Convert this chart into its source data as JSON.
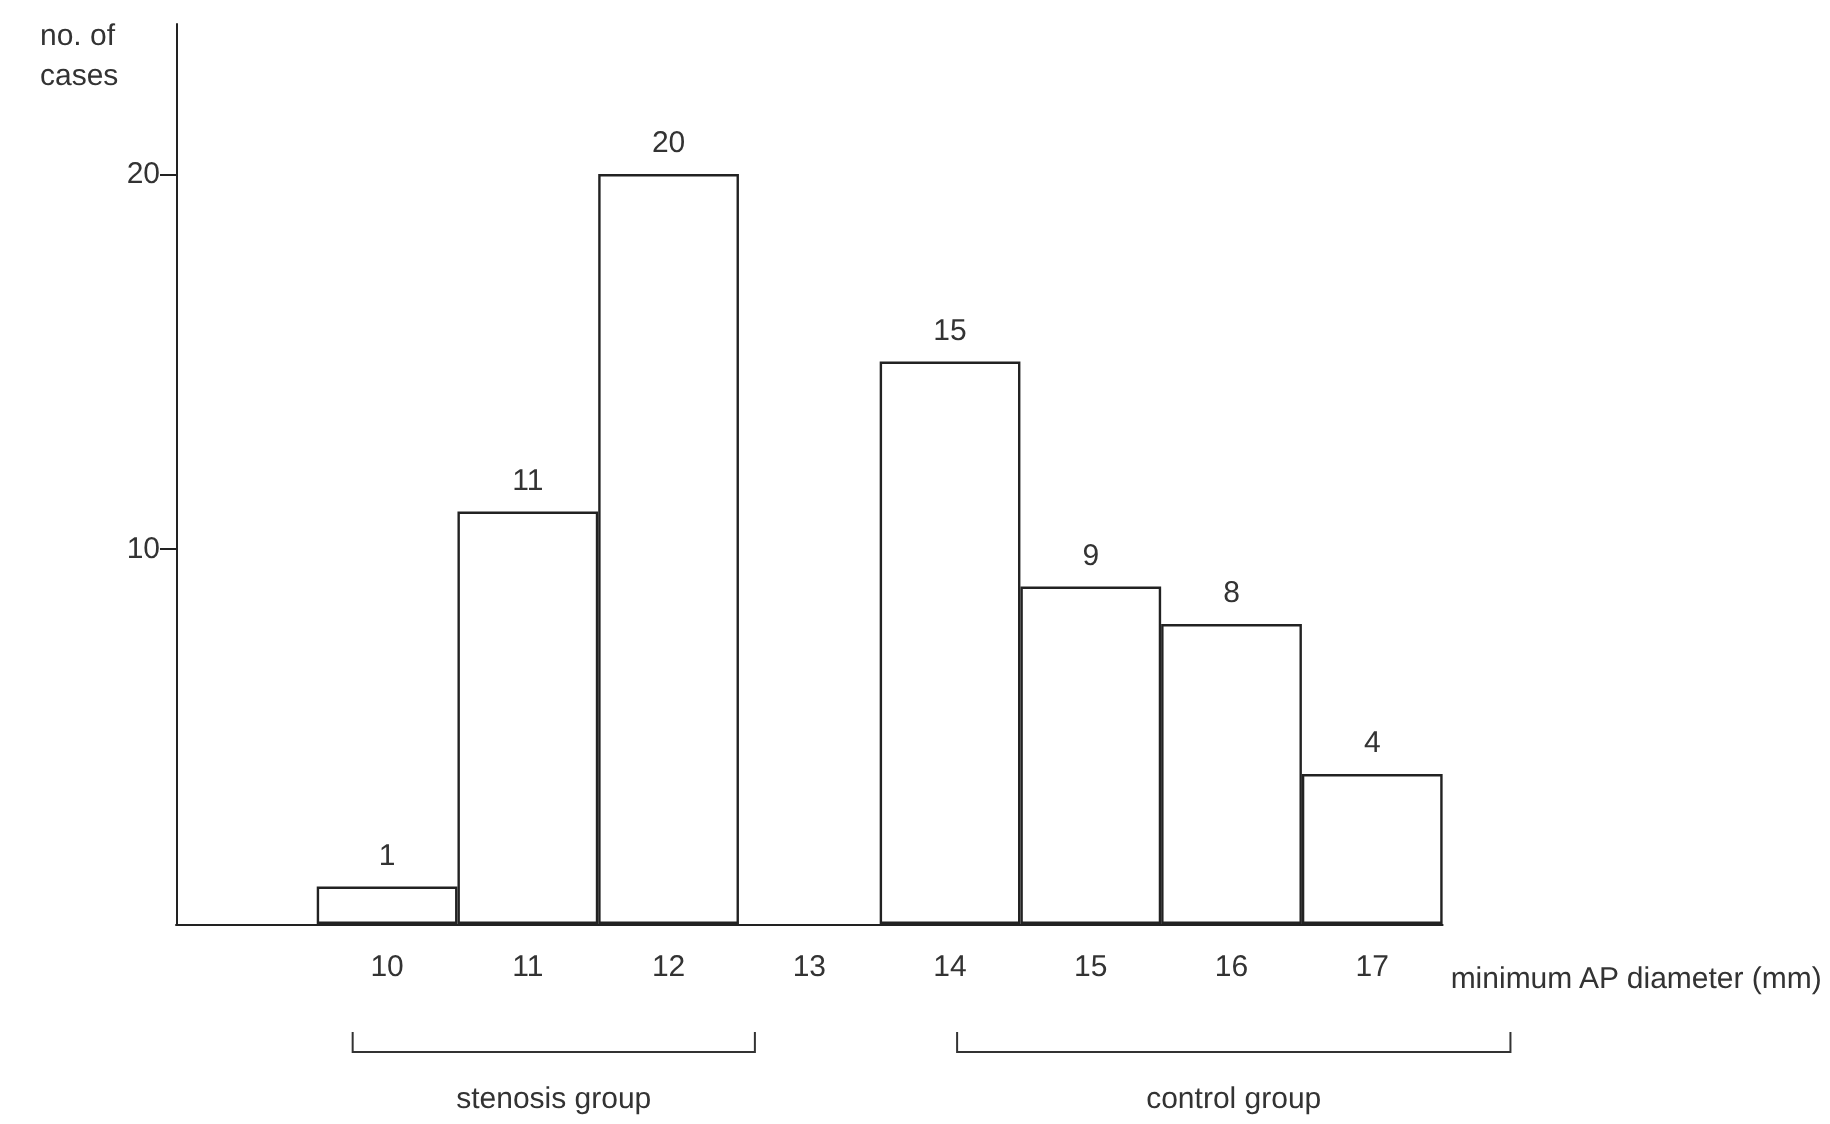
{
  "chart_data": {
    "type": "bar",
    "xlabel": "minimum AP diameter (mm)",
    "ylabel": "no. of cases",
    "categories": [
      null,
      "10",
      "11",
      "12",
      "13",
      "14",
      "15",
      "16",
      "17"
    ],
    "values": [
      null,
      1,
      11,
      20,
      null,
      15,
      9,
      8,
      4
    ],
    "color": "#ffffff",
    "data_labels": true,
    "ylim": [
      0,
      24
    ],
    "yticks": [
      10,
      20
    ],
    "annotations": [
      "stenosis group",
      "control group"
    ]
  }
}
